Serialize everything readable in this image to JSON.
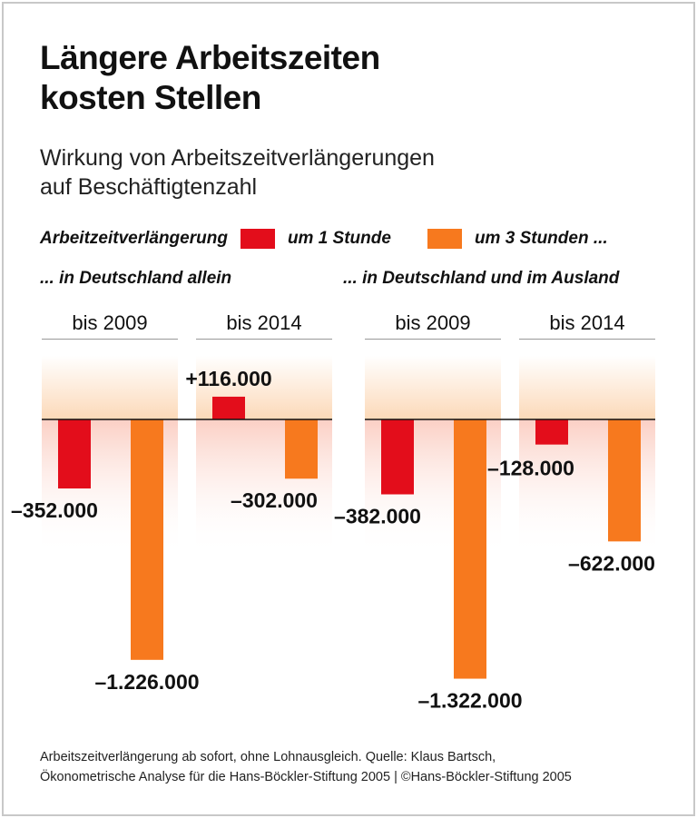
{
  "title_line1": "Längere Arbeitszeiten",
  "title_line2": "kosten Stellen",
  "subtitle_line1": "Wirkung von Arbeitszeitverlängerungen",
  "subtitle_line2": "auf Beschäftigtenzahl",
  "legend": {
    "label": "Arbeitzeitverlängerung",
    "items": [
      "um 1 Stunde",
      "um 3 Stunden ..."
    ]
  },
  "regions": [
    "... in Deutschland allein",
    "... in Deutschland und im Ausland"
  ],
  "footer_line1": "Arbeitszeitverlängerung ab sofort, ohne Lohnausgleich. Quelle: Klaus Bartsch,",
  "footer_line2": "Ökonometrische Analyse für die Hans-Böckler-Stiftung 2005 | ©Hans-Böckler-Stiftung 2005",
  "chart_data": {
    "type": "bar",
    "categories": [
      "bis 2009",
      "bis 2014",
      "bis 2009",
      "bis 2014"
    ],
    "groups": [
      "... in Deutschland allein",
      "... in Deutschland allein",
      "... in Deutschland und im Ausland",
      "... in Deutschland und im Ausland"
    ],
    "series": [
      {
        "name": "um 1 Stunde",
        "color": "#e30d1b",
        "values": [
          -352000,
          116000,
          -382000,
          -128000
        ],
        "labels": [
          "–352.000",
          "+116.000",
          "–382.000",
          "–128.000"
        ]
      },
      {
        "name": "um 3 Stunden ...",
        "color": "#f7791e",
        "values": [
          -1226000,
          -302000,
          -1322000,
          -622000
        ],
        "labels": [
          "–1.226.000",
          "–302.000",
          "–1.322.000",
          "–622.000"
        ]
      }
    ]
  }
}
